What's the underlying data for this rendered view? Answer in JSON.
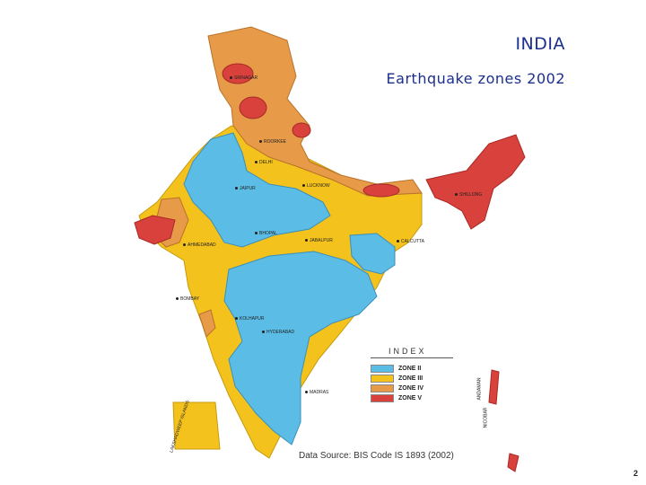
{
  "header": {
    "title": "INDIA",
    "subtitle": "Earthquake zones 2002"
  },
  "map": {
    "cities": [
      {
        "name": "SRINAGAR",
        "key": "srinagar"
      },
      {
        "name": "ROORKEE",
        "key": "roorkee"
      },
      {
        "name": "DELHI",
        "key": "delhi"
      },
      {
        "name": "JAIPUR",
        "key": "jaipur"
      },
      {
        "name": "LUCKNOW",
        "key": "lucknow"
      },
      {
        "name": "SHILLONG",
        "key": "shillong"
      },
      {
        "name": "BHOPAL",
        "key": "bhopal"
      },
      {
        "name": "JABALPUR",
        "key": "jabalpur"
      },
      {
        "name": "AHMEDABAD",
        "key": "ahmedabad"
      },
      {
        "name": "CALCUTTA",
        "key": "calcutta"
      },
      {
        "name": "BOMBAY",
        "key": "bombay"
      },
      {
        "name": "KOLHAPUR",
        "key": "kolhapur"
      },
      {
        "name": "HYDERABAD",
        "key": "hyderabad"
      },
      {
        "name": "MADRAS",
        "key": "madras"
      },
      {
        "name": "LAKSHADWEEP ISLANDS",
        "key": "lakshadweep"
      },
      {
        "name": "ANDAMAN",
        "key": "andaman"
      },
      {
        "name": "NICOBAR",
        "key": "nicobar"
      }
    ]
  },
  "legend": {
    "title": "INDEX",
    "items": [
      {
        "label": "ZONE II",
        "color": "#5bbde6"
      },
      {
        "label": "ZONE III",
        "color": "#f4c21c"
      },
      {
        "label": "ZONE IV",
        "color": "#e79a48"
      },
      {
        "label": "ZONE V",
        "color": "#d8413c"
      }
    ]
  },
  "source": "Data Source: BIS Code IS 1893 (2002)",
  "page_number": "2",
  "colors": {
    "zone2": "#5bbde6",
    "zone3": "#f4c21c",
    "zone4": "#e79a48",
    "zone5": "#d8413c",
    "title": "#1b2f8c"
  }
}
